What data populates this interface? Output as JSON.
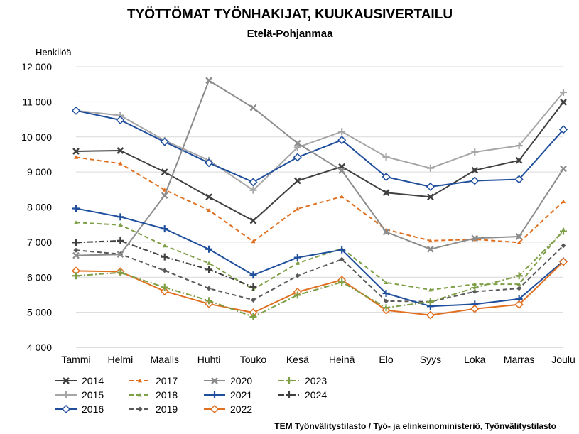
{
  "chart_data": {
    "type": "line",
    "title": "TYÖTTÖMAT TYÖNHAKIJAT, KUUKAUSIVERTAILU",
    "subtitle": "Etelä-Pohjanmaa",
    "ylabel": "Henkilöä",
    "source": "TEM Työnvälitystilasto / Työ- ja elinkeinoministeriö, Työnvälitystilasto",
    "ylim": [
      4000,
      12000
    ],
    "ytick_values": [
      4000,
      5000,
      6000,
      7000,
      8000,
      9000,
      10000,
      11000,
      12000
    ],
    "ytick_labels": [
      "4 000",
      "5 000",
      "6 000",
      "7 000",
      "8 000",
      "9 000",
      "10 000",
      "11 000",
      "12 000"
    ],
    "grid": "horizontal",
    "legend_position": "bottom-left",
    "categories": [
      "Tammi",
      "Helmi",
      "Maalis",
      "Huhti",
      "Touko",
      "Kesä",
      "Heinä",
      "Elo",
      "Syys",
      "Loka",
      "Marras",
      "Joulu"
    ],
    "series": [
      {
        "name": "2014",
        "color": "#404040",
        "dash": "solid",
        "marker": "x",
        "values": [
          9590,
          9610,
          9000,
          8290,
          7610,
          8750,
          9150,
          8410,
          8290,
          9050,
          9330,
          10990
        ]
      },
      {
        "name": "2015",
        "color": "#a6a6a6",
        "dash": "solid",
        "marker": "plus",
        "values": [
          10750,
          10610,
          9900,
          9330,
          8480,
          9700,
          10150,
          9430,
          9110,
          9570,
          9750,
          11270
        ]
      },
      {
        "name": "2016",
        "color": "#1f4e9c",
        "dash": "solid",
        "marker": "diamond",
        "values": [
          10750,
          10480,
          9860,
          9260,
          8710,
          9420,
          9910,
          8860,
          8580,
          8750,
          8790,
          10210
        ]
      },
      {
        "name": "2017",
        "color": "#e07020",
        "dash": "dash",
        "marker": "triangle",
        "values": [
          9420,
          9240,
          8490,
          7910,
          7020,
          7950,
          8300,
          7360,
          7040,
          7080,
          6990,
          8160
        ]
      },
      {
        "name": "2018",
        "color": "#7f9f47",
        "dash": "dash",
        "marker": "triangle",
        "values": [
          7560,
          7490,
          6900,
          6400,
          5650,
          6400,
          6820,
          5850,
          5640,
          5800,
          5800,
          7350
        ]
      },
      {
        "name": "2019",
        "color": "#595959",
        "dash": "dash",
        "marker": "smalldiamond",
        "values": [
          6770,
          6660,
          6190,
          5680,
          5350,
          6040,
          6510,
          5320,
          5300,
          5590,
          5680,
          6900
        ]
      },
      {
        "name": "2020",
        "color": "#8c8c8c",
        "dash": "solid",
        "marker": "x",
        "values": [
          6620,
          6650,
          8330,
          11610,
          10830,
          9820,
          9040,
          7290,
          6800,
          7110,
          7160,
          9090
        ]
      },
      {
        "name": "2021",
        "color": "#1f4e9c",
        "dash": "solid",
        "marker": "plus",
        "values": [
          7960,
          7720,
          7380,
          6800,
          6060,
          6560,
          6780,
          5540,
          5170,
          5230,
          5380,
          6460
        ]
      },
      {
        "name": "2022",
        "color": "#e07020",
        "dash": "solid",
        "marker": "diamond",
        "values": [
          6180,
          6160,
          5600,
          5240,
          4990,
          5580,
          5920,
          5060,
          4920,
          5100,
          5220,
          6440
        ]
      },
      {
        "name": "2023",
        "color": "#7f9f47",
        "dash": "dashdot",
        "marker": "plus",
        "values": [
          6040,
          6130,
          5710,
          5330,
          4870,
          5490,
          5860,
          5130,
          5300,
          5700,
          6040,
          7310
        ]
      },
      {
        "name": "2024",
        "color": "#404040",
        "dash": "dashdot",
        "marker": "plus",
        "values": [
          6990,
          7040,
          6580,
          6220,
          5720,
          null,
          null,
          null,
          null,
          null,
          null,
          null
        ]
      }
    ]
  }
}
